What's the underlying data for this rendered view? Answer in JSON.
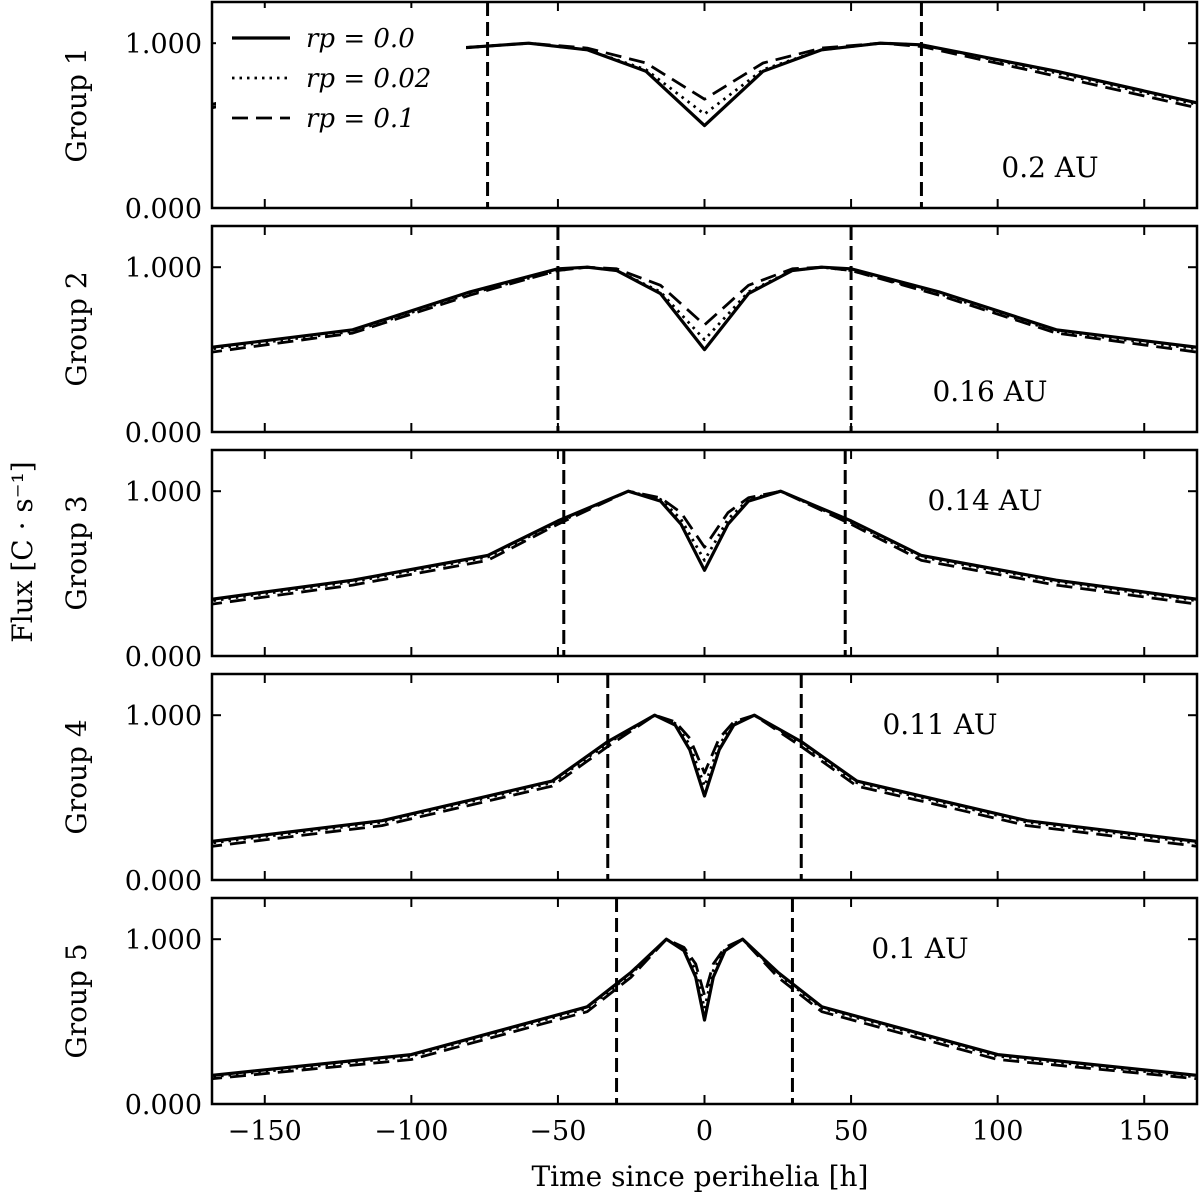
{
  "chart_data": {
    "type": "line",
    "xlabel": "Time since perihelia [h]",
    "ylabel": "Flux [C · s⁻¹]",
    "xlim": [
      -168,
      168
    ],
    "xticks": [
      -150,
      -100,
      -50,
      0,
      50,
      100,
      150
    ],
    "xtick_labels": [
      "−150",
      "−100",
      "−50",
      "0",
      "50",
      "100",
      "150"
    ],
    "legend": {
      "location": "upper-left of top panel",
      "entries": [
        {
          "label": "rp = 0.0",
          "style": "solid"
        },
        {
          "label": "rp = 0.02",
          "style": "dotted"
        },
        {
          "label": "rp = 0.1",
          "style": "dashed"
        }
      ]
    },
    "panels": [
      {
        "ylabel": "Group 1",
        "annotation": "0.2 AU",
        "ylim": [
          0,
          1.25
        ],
        "yticks": [
          0,
          1
        ],
        "ytick_labels": [
          "0.000",
          "1.000"
        ],
        "vlines": [
          -74,
          74
        ],
        "x_start": -84,
        "series": [
          {
            "name": "rp = 0.0",
            "x": [
              -170,
              -120,
              -84,
              -60,
              -40,
              -20,
              0,
              20,
              40,
              60,
              74,
              120,
              170
            ],
            "y": [
              0.62,
              0.82,
              0.97,
              1.0,
              0.96,
              0.83,
              0.5,
              0.83,
              0.96,
              1.0,
              0.99,
              0.83,
              0.63
            ]
          },
          {
            "name": "rp = 0.02",
            "x": [
              -170,
              -120,
              -84,
              -60,
              -40,
              -20,
              0,
              20,
              40,
              60,
              74,
              120,
              170
            ],
            "y": [
              0.62,
              0.81,
              0.97,
              1.0,
              0.96,
              0.84,
              0.57,
              0.84,
              0.96,
              1.0,
              0.99,
              0.82,
              0.62
            ]
          },
          {
            "name": "rp = 0.1",
            "x": [
              -170,
              -120,
              -84,
              -60,
              -40,
              -20,
              0,
              20,
              40,
              60,
              74,
              120,
              170
            ],
            "y": [
              0.6,
              0.8,
              0.97,
              1.0,
              0.97,
              0.88,
              0.66,
              0.88,
              0.97,
              1.0,
              0.98,
              0.8,
              0.6
            ]
          }
        ]
      },
      {
        "ylabel": "Group 2",
        "annotation": "0.16 AU",
        "ylim": [
          0,
          1.25
        ],
        "yticks": [
          0,
          1
        ],
        "ytick_labels": [
          "0.000",
          "1.000"
        ],
        "vlines": [
          -50,
          50
        ],
        "series": [
          {
            "name": "rp = 0.0",
            "x": [
              -170,
              -120,
              -80,
              -50,
              -40,
              -30,
              -15,
              0,
              15,
              30,
              40,
              50,
              80,
              120,
              170
            ],
            "y": [
              0.51,
              0.62,
              0.85,
              0.99,
              1.0,
              0.98,
              0.84,
              0.5,
              0.84,
              0.98,
              1.0,
              0.99,
              0.85,
              0.62,
              0.51
            ]
          },
          {
            "name": "rp = 0.02",
            "x": [
              -170,
              -120,
              -80,
              -50,
              -40,
              -30,
              -15,
              0,
              15,
              30,
              40,
              50,
              80,
              120,
              170
            ],
            "y": [
              0.5,
              0.61,
              0.84,
              0.98,
              1.0,
              0.98,
              0.85,
              0.56,
              0.85,
              0.98,
              1.0,
              0.98,
              0.84,
              0.61,
              0.5
            ]
          },
          {
            "name": "rp = 0.1",
            "x": [
              -170,
              -120,
              -80,
              -50,
              -40,
              -30,
              -15,
              0,
              15,
              30,
              40,
              50,
              80,
              120,
              170
            ],
            "y": [
              0.48,
              0.6,
              0.83,
              0.98,
              1.0,
              0.99,
              0.89,
              0.65,
              0.89,
              0.99,
              1.0,
              0.98,
              0.83,
              0.6,
              0.48
            ]
          }
        ]
      },
      {
        "ylabel": "Group 3",
        "annotation": "0.14 AU",
        "ylim": [
          0,
          1.25
        ],
        "yticks": [
          0,
          1
        ],
        "ytick_labels": [
          "0.000",
          "1.000"
        ],
        "vlines": [
          -48,
          48
        ],
        "series": [
          {
            "name": "rp = 0.0",
            "x": [
              -170,
              -120,
              -74,
              -50,
              -26,
              -15,
              -8,
              0,
              8,
              15,
              26,
              50,
              74,
              120,
              170
            ],
            "y": [
              0.34,
              0.46,
              0.61,
              0.82,
              1.0,
              0.94,
              0.8,
              0.52,
              0.8,
              0.94,
              1.0,
              0.82,
              0.61,
              0.46,
              0.34
            ]
          },
          {
            "name": "rp = 0.02",
            "x": [
              -170,
              -120,
              -74,
              -50,
              -26,
              -15,
              -8,
              0,
              8,
              15,
              26,
              50,
              74,
              120,
              170
            ],
            "y": [
              0.33,
              0.45,
              0.6,
              0.81,
              1.0,
              0.95,
              0.83,
              0.58,
              0.83,
              0.95,
              1.0,
              0.81,
              0.6,
              0.45,
              0.33
            ]
          },
          {
            "name": "rp = 0.1",
            "x": [
              -170,
              -120,
              -74,
              -50,
              -26,
              -15,
              -8,
              0,
              8,
              15,
              26,
              50,
              74,
              120,
              170
            ],
            "y": [
              0.31,
              0.43,
              0.58,
              0.8,
              1.0,
              0.96,
              0.87,
              0.66,
              0.87,
              0.96,
              1.0,
              0.8,
              0.58,
              0.43,
              0.31
            ]
          }
        ]
      },
      {
        "ylabel": "Group 4",
        "annotation": "0.11 AU",
        "ylim": [
          0,
          1.25
        ],
        "yticks": [
          0,
          1
        ],
        "ytick_labels": [
          "0.000",
          "1.000"
        ],
        "vlines": [
          -33,
          33
        ],
        "series": [
          {
            "name": "rp = 0.0",
            "x": [
              -170,
              -110,
              -52,
              -33,
              -17,
              -10,
              -5,
              0,
              5,
              10,
              17,
              33,
              52,
              110,
              170
            ],
            "y": [
              0.23,
              0.36,
              0.6,
              0.84,
              1.0,
              0.94,
              0.79,
              0.51,
              0.79,
              0.94,
              1.0,
              0.84,
              0.6,
              0.36,
              0.23
            ]
          },
          {
            "name": "rp = 0.02",
            "x": [
              -170,
              -110,
              -52,
              -33,
              -17,
              -10,
              -5,
              0,
              5,
              10,
              17,
              33,
              52,
              110,
              170
            ],
            "y": [
              0.22,
              0.35,
              0.59,
              0.83,
              1.0,
              0.95,
              0.82,
              0.57,
              0.82,
              0.95,
              1.0,
              0.83,
              0.59,
              0.35,
              0.22
            ]
          },
          {
            "name": "rp = 0.1",
            "x": [
              -170,
              -110,
              -52,
              -33,
              -17,
              -10,
              -5,
              0,
              5,
              10,
              17,
              33,
              52,
              110,
              170
            ],
            "y": [
              0.2,
              0.33,
              0.57,
              0.81,
              1.0,
              0.96,
              0.86,
              0.65,
              0.86,
              0.96,
              1.0,
              0.81,
              0.57,
              0.33,
              0.2
            ]
          }
        ]
      },
      {
        "ylabel": "Group 5",
        "annotation": "0.1 AU",
        "ylim": [
          0,
          1.25
        ],
        "yticks": [
          0,
          1
        ],
        "ytick_labels": [
          "0.000",
          "1.000"
        ],
        "vlines": [
          -30,
          30
        ],
        "series": [
          {
            "name": "rp = 0.0",
            "x": [
              -170,
              -100,
              -40,
              -25,
              -13,
              -7,
              -3,
              0,
              3,
              7,
              13,
              25,
              40,
              100,
              170
            ],
            "y": [
              0.17,
              0.3,
              0.59,
              0.8,
              1.0,
              0.93,
              0.77,
              0.51,
              0.77,
              0.93,
              1.0,
              0.8,
              0.59,
              0.3,
              0.17
            ]
          },
          {
            "name": "rp = 0.02",
            "x": [
              -170,
              -100,
              -40,
              -25,
              -13,
              -7,
              -3,
              0,
              3,
              7,
              13,
              25,
              40,
              100,
              170
            ],
            "y": [
              0.16,
              0.29,
              0.58,
              0.79,
              1.0,
              0.94,
              0.81,
              0.58,
              0.81,
              0.94,
              1.0,
              0.79,
              0.58,
              0.29,
              0.16
            ]
          },
          {
            "name": "rp = 0.1",
            "x": [
              -170,
              -100,
              -40,
              -25,
              -13,
              -7,
              -3,
              0,
              3,
              7,
              13,
              25,
              40,
              100,
              170
            ],
            "y": [
              0.15,
              0.27,
              0.56,
              0.77,
              1.0,
              0.95,
              0.85,
              0.66,
              0.85,
              0.95,
              1.0,
              0.77,
              0.56,
              0.27,
              0.15
            ]
          }
        ]
      }
    ]
  }
}
